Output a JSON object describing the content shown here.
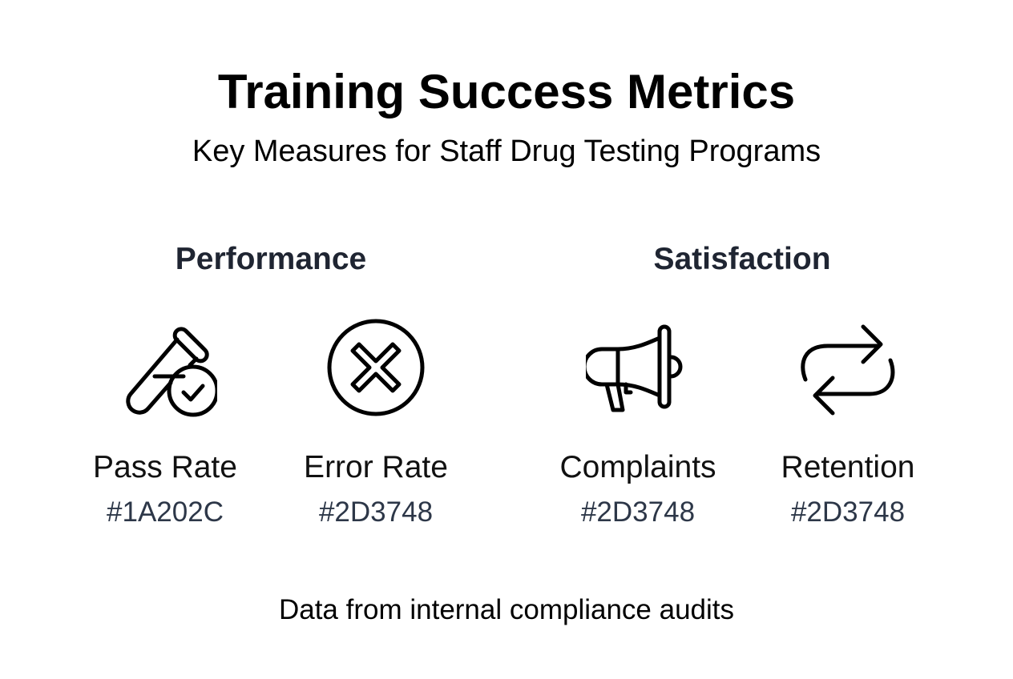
{
  "title": "Training Success Metrics",
  "subtitle": "Key Measures for Staff Drug Testing Programs",
  "sections": [
    {
      "heading": "Performance",
      "items": [
        {
          "label": "Pass Rate",
          "hex": "#1A202C",
          "icon": "test-tube-check-icon"
        },
        {
          "label": "Error Rate",
          "hex": "#2D3748",
          "icon": "circle-x-icon"
        }
      ]
    },
    {
      "heading": "Satisfaction",
      "items": [
        {
          "label": "Complaints",
          "hex": "#2D3748",
          "icon": "megaphone-icon"
        },
        {
          "label": "Retention",
          "hex": "#2D3748",
          "icon": "repeat-icon"
        }
      ]
    }
  ],
  "footer": "Data from internal compliance audits"
}
